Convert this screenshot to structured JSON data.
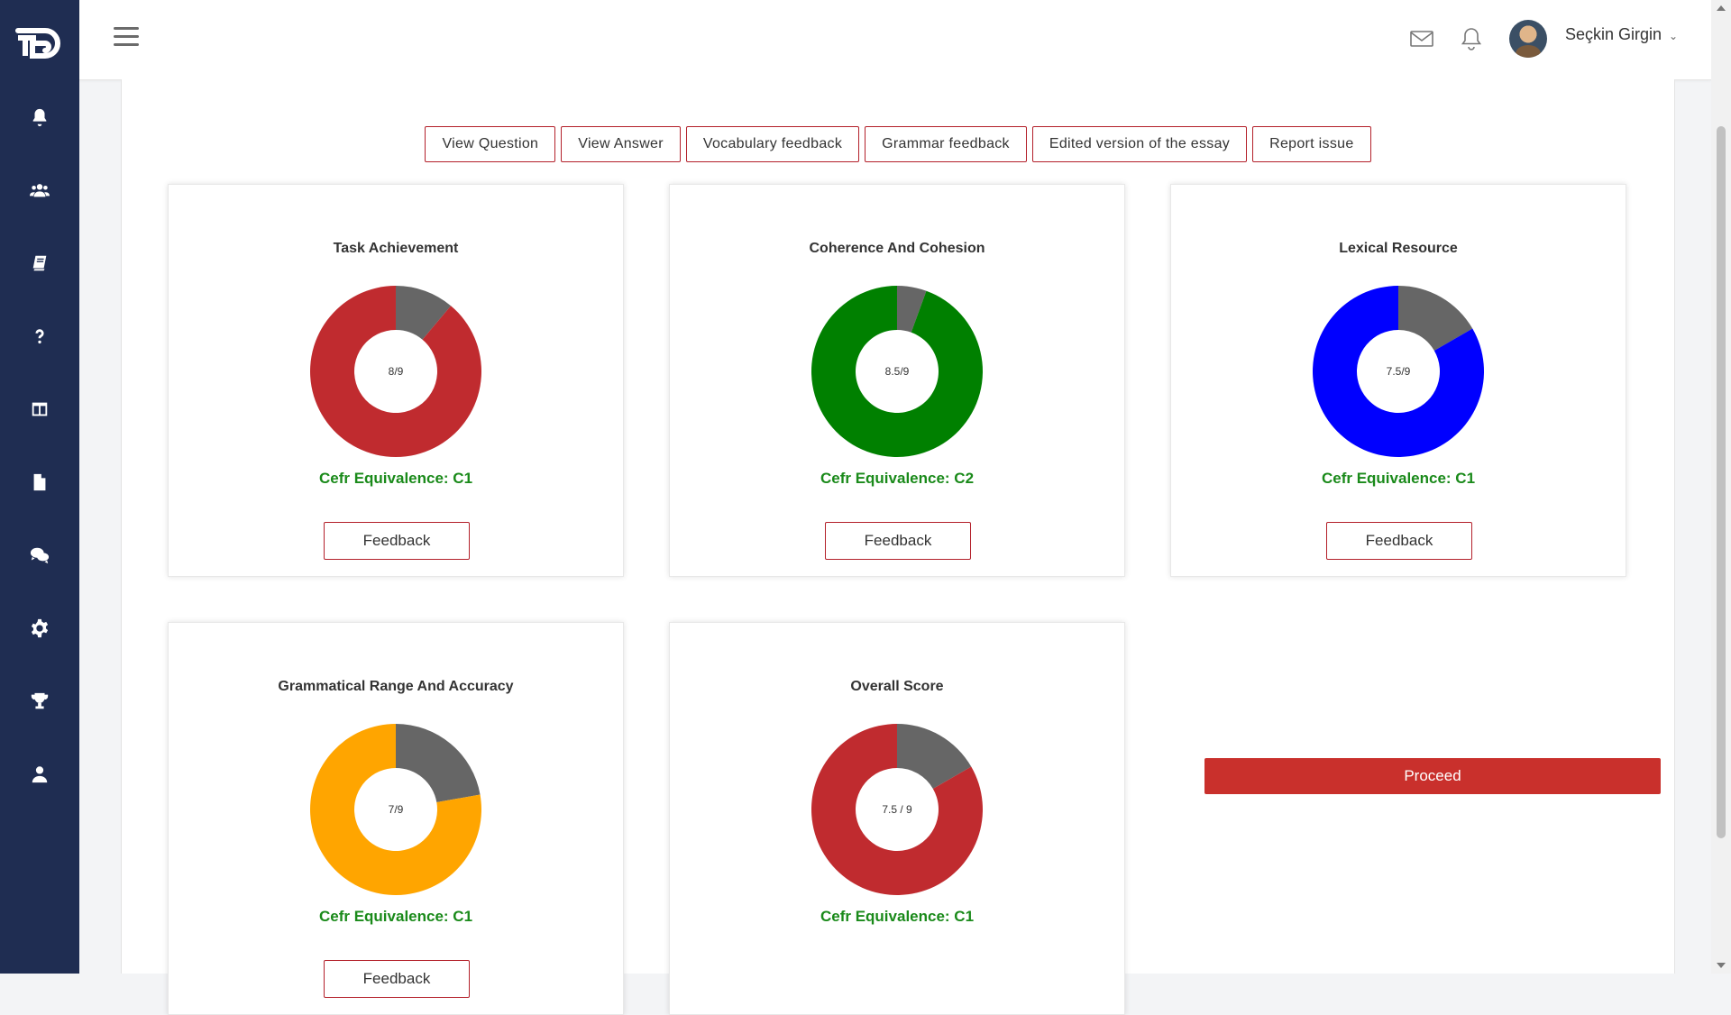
{
  "header": {
    "user_name": "Seçkin Girgin"
  },
  "sidebar": {
    "items": [
      {
        "icon": "bell-icon"
      },
      {
        "icon": "users-icon"
      },
      {
        "icon": "book-icon"
      },
      {
        "icon": "question-icon"
      },
      {
        "icon": "columns-icon"
      },
      {
        "icon": "file-icon"
      },
      {
        "icon": "chat-icon"
      },
      {
        "icon": "gear-icon"
      },
      {
        "icon": "trophy-icon"
      },
      {
        "icon": "user-icon"
      }
    ]
  },
  "tabs": [
    {
      "label": "View Question"
    },
    {
      "label": "View Answer"
    },
    {
      "label": "Vocabulary feedback"
    },
    {
      "label": "Grammar feedback"
    },
    {
      "label": "Edited version of the essay"
    },
    {
      "label": "Report issue"
    }
  ],
  "cards": [
    {
      "title": "Task Achievement",
      "score_label": "8/9",
      "score": 8,
      "max": 9,
      "color": "#c02b2f",
      "cefr": "Cefr Equivalence: C1",
      "feedback_label": "Feedback"
    },
    {
      "title": "Coherence And Cohesion",
      "score_label": "8.5/9",
      "score": 8.5,
      "max": 9,
      "color": "#008000",
      "cefr": "Cefr Equivalence: C2",
      "feedback_label": "Feedback"
    },
    {
      "title": "Lexical Resource",
      "score_label": "7.5/9",
      "score": 7.5,
      "max": 9,
      "color": "#0000ff",
      "cefr": "Cefr Equivalence: C1",
      "feedback_label": "Feedback"
    },
    {
      "title": "Grammatical Range And Accuracy",
      "score_label": "7/9",
      "score": 7,
      "max": 9,
      "color": "#ffa500",
      "cefr": "Cefr Equivalence: C1",
      "feedback_label": "Feedback"
    },
    {
      "title": "Overall Score",
      "score_label": "7.5 / 9",
      "score": 7.5,
      "max": 9,
      "color": "#c02b2f",
      "cefr": "Cefr Equivalence: C1",
      "feedback_label": ""
    }
  ],
  "remaining_color": "#666666",
  "proceed_label": "Proceed"
}
